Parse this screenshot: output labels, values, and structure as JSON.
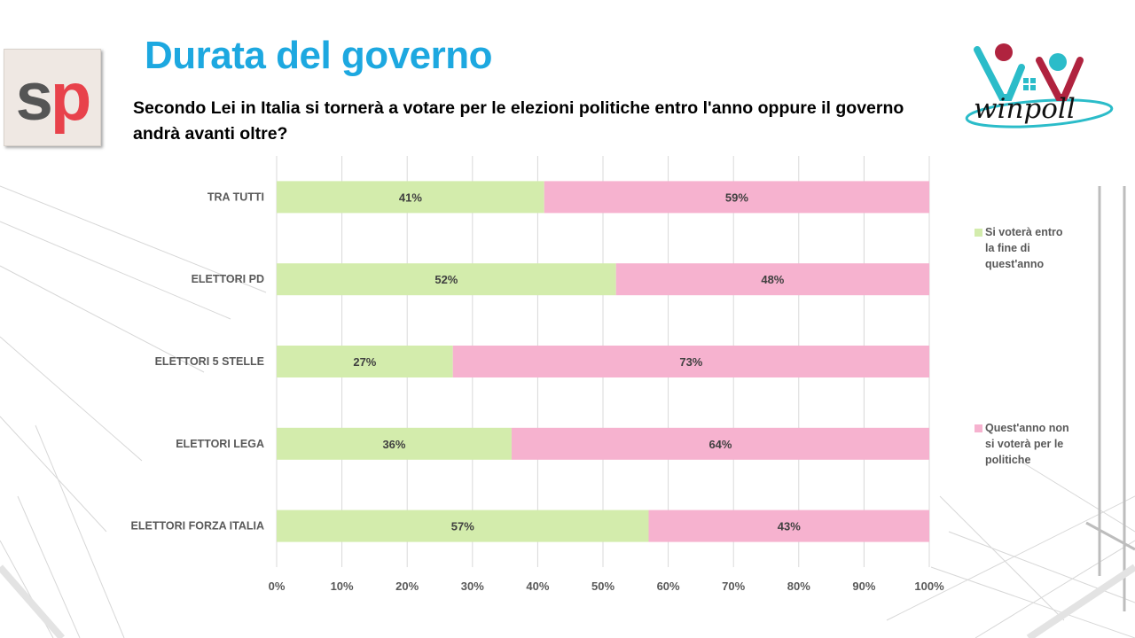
{
  "header": {
    "title": "Durata del governo",
    "question": "Secondo Lei in Italia si tornerà a votare per le elezioni politiche entro l'anno oppure il governo andrà avanti oltre?",
    "logo_left": {
      "s": "s",
      "p": "p"
    },
    "logo_right": "winpoll"
  },
  "colors": {
    "title": "#1da8e0",
    "series_1": "#d3ecac",
    "series_2": "#f6b2cf",
    "logo_p": "#e8424b",
    "winpoll_teal": "#2bbcc9",
    "winpoll_red": "#b0233f"
  },
  "chart_data": {
    "type": "bar",
    "orientation": "horizontal",
    "stacked": true,
    "categories": [
      "TRA TUTTI",
      "ELETTORI PD",
      "ELETTORI 5 STELLE",
      "ELETTORI LEGA",
      "ELETTORI FORZA ITALIA"
    ],
    "series": [
      {
        "name": "Si voterà entro la fine di quest'anno",
        "values": [
          41,
          52,
          27,
          36,
          57
        ],
        "color": "#d3ecac"
      },
      {
        "name": "Quest'anno non si voterà per le politiche",
        "values": [
          59,
          48,
          73,
          64,
          43
        ],
        "color": "#f6b2cf"
      }
    ],
    "xlim": [
      0,
      100
    ],
    "xticks": [
      "0%",
      "10%",
      "20%",
      "30%",
      "40%",
      "50%",
      "60%",
      "70%",
      "80%",
      "90%",
      "100%"
    ],
    "grid": true,
    "legend_position": "right",
    "legend_lines": [
      [
        "Si voterà entro",
        "la fine di",
        "quest'anno"
      ],
      [
        "Quest'anno non",
        "si voterà per le",
        "politiche"
      ]
    ]
  }
}
